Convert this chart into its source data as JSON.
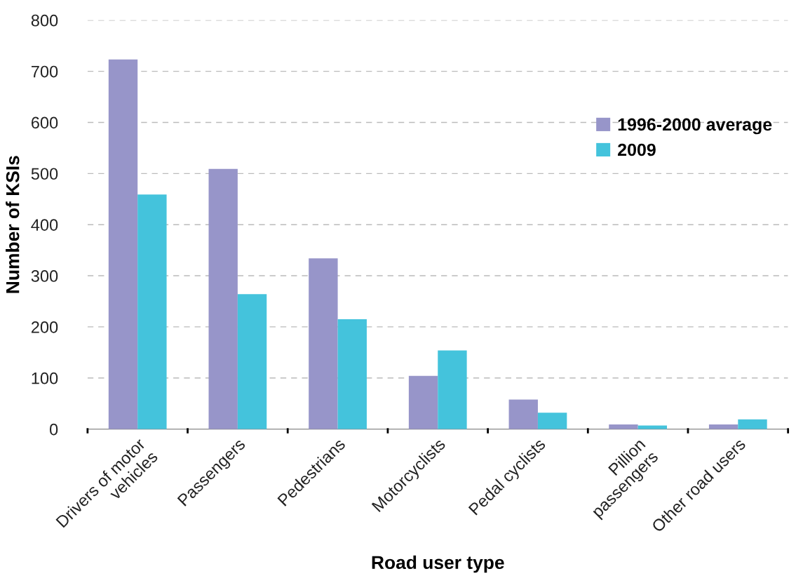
{
  "chart_data": {
    "type": "bar",
    "xlabel": "Road user type",
    "ylabel": "Number of KSIs",
    "categories": [
      "Drivers of motor\nvehicles",
      "Passengers",
      "Pedestrians",
      "Motorcyclists",
      "Pedal cyclists",
      "Pillion\npassengers",
      "Other road users"
    ],
    "series": [
      {
        "name": "1996-2000 average",
        "color": "#9795c9",
        "values": [
          723,
          509,
          334,
          104,
          58,
          9,
          9
        ]
      },
      {
        "name": "2009",
        "color": "#44c3dc",
        "values": [
          459,
          264,
          215,
          154,
          32,
          7,
          19
        ]
      }
    ],
    "ylim": [
      0,
      800
    ],
    "yticks": [
      0,
      100,
      200,
      300,
      400,
      500,
      600,
      700,
      800
    ],
    "grid": "y",
    "legend": "top right"
  }
}
